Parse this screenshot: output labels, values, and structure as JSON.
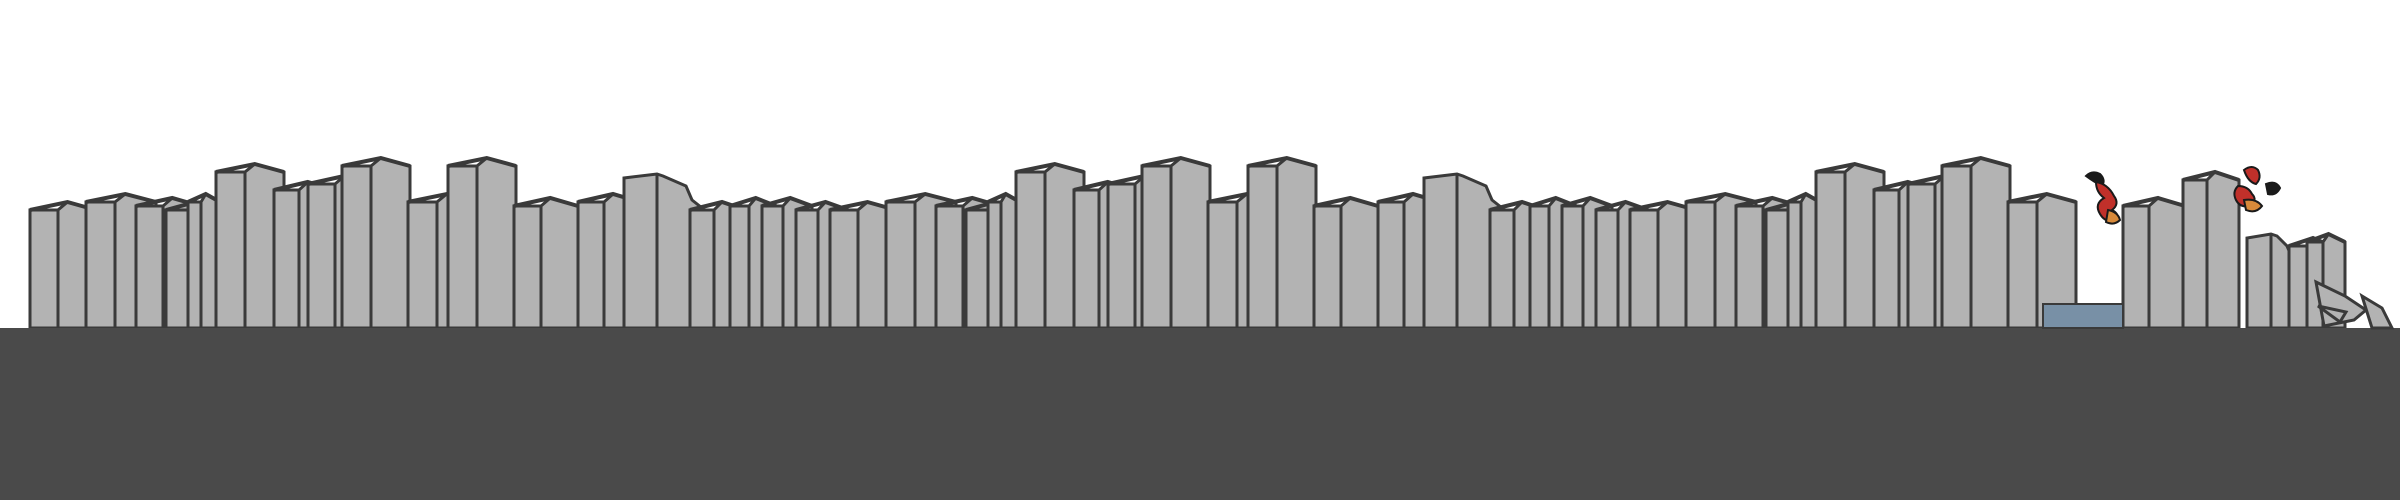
{
  "game": {
    "title": "",
    "hud": {}
  },
  "colors": {
    "sky": "#ffffff",
    "ground": "#4a4a4a",
    "building_front": "#b3b3b3",
    "building_side": "#9c9c9c",
    "outline": "#3a3a3a",
    "water": "#7890a6",
    "fire_red": "#c0302a",
    "fire_orange": "#d88a3a",
    "smoke": "#1a1a1a"
  },
  "scene": {
    "segments": [
      "intact-city-1",
      "intact-city-2",
      "damaged-city"
    ],
    "hazards": [
      "fire",
      "water-gap",
      "collapsed-rubble"
    ]
  }
}
